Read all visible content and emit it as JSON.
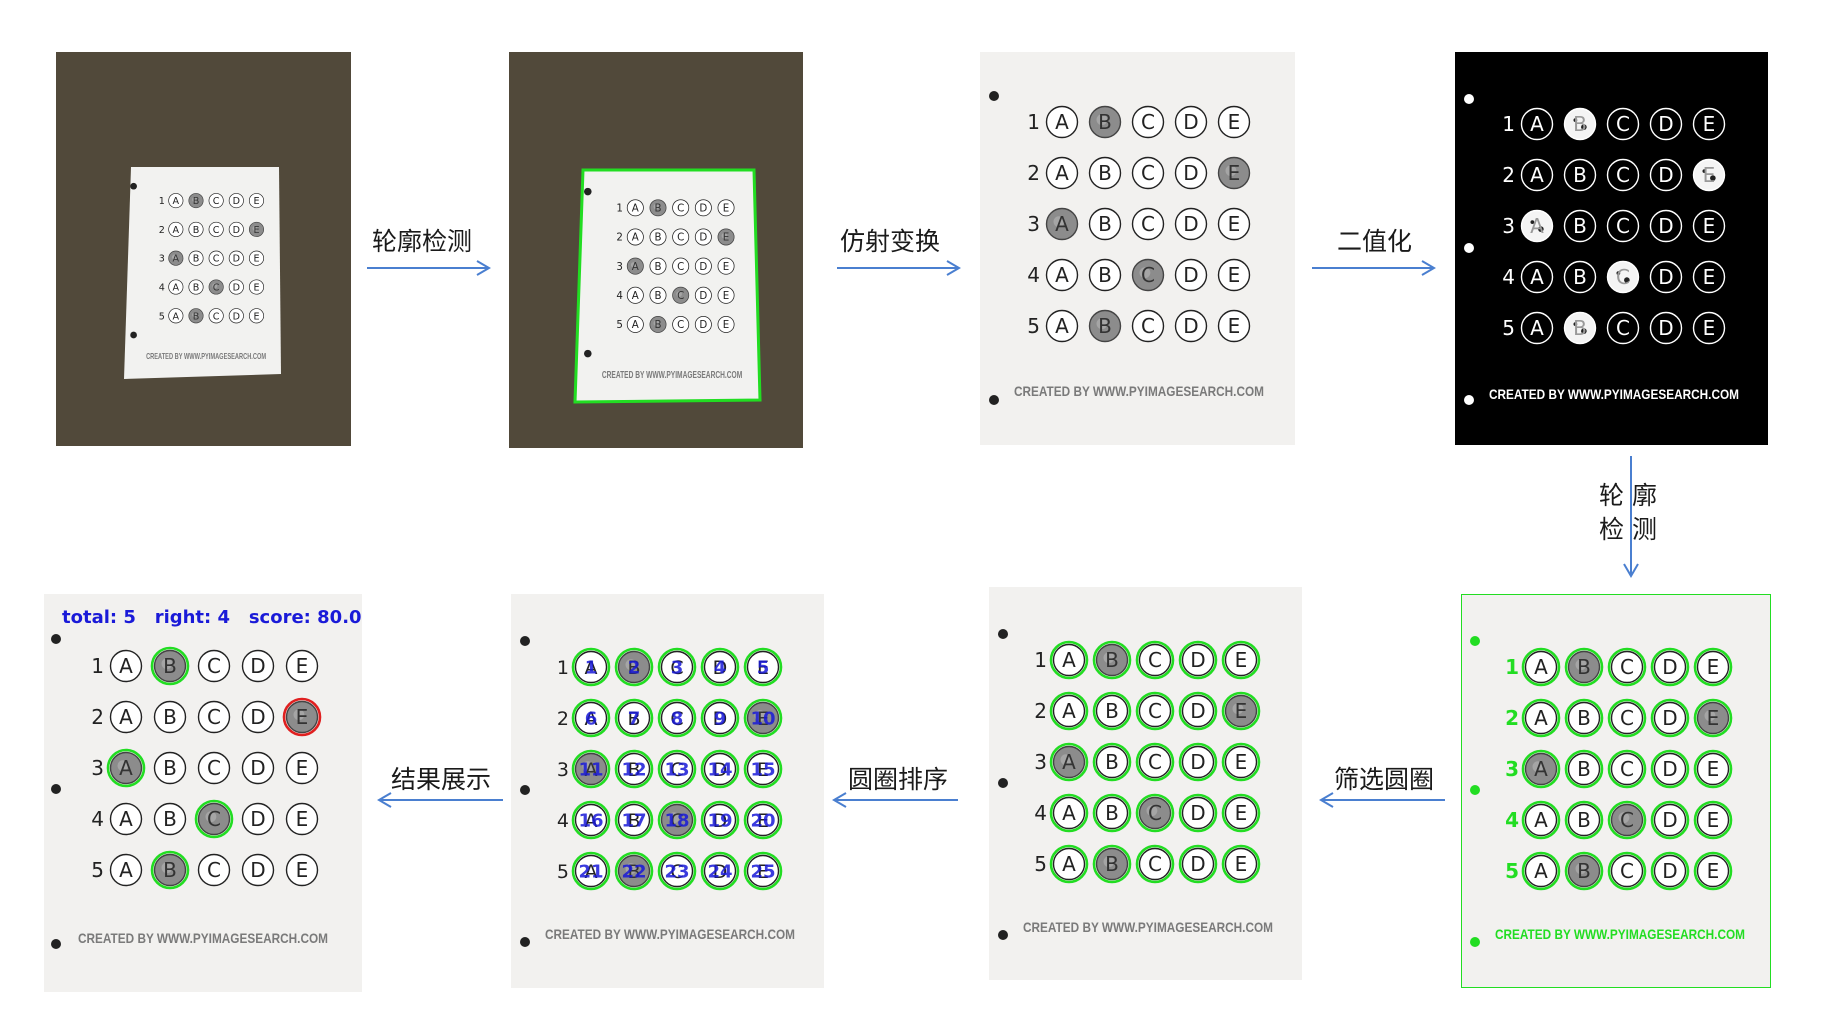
{
  "sheet": {
    "rows": [
      "1",
      "2",
      "3",
      "4",
      "5"
    ],
    "options": [
      "A",
      "B",
      "C",
      "D",
      "E"
    ],
    "marked": [
      1,
      4,
      0,
      2,
      1
    ],
    "footer": "CREATED BY WWW.PYIMAGESEARCH.COM"
  },
  "steps": {
    "contour_detect": "轮廓检测",
    "perspective": "仿射变换",
    "binarize": "二值化",
    "contour_detect_v1": "轮 廓",
    "contour_detect_v2": "检 测",
    "filter_circles": "筛选圆圈",
    "sort_circles": "圆圈排序",
    "show_result": "结果展示"
  },
  "result": {
    "total_label": "total:",
    "total": "5",
    "right_label": "right:",
    "right": "4",
    "score_label": "score:",
    "score": "80.0"
  },
  "colors": {
    "detect_green": "#22dd22",
    "wrong_red": "#e02020",
    "index_blue": "#1a1ad8",
    "arrow_blue": "#4a7fd0",
    "table_brown": "#51493a"
  }
}
